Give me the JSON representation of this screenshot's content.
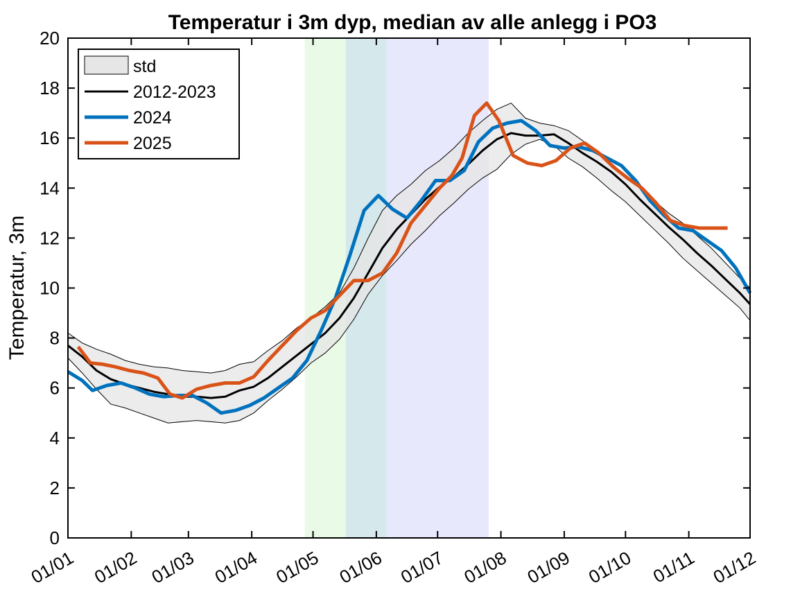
{
  "chart_data": {
    "type": "line",
    "title": "Temperatur i 3m dyp, median av alle anlegg i PO3",
    "xlabel": "",
    "ylabel": "Temperatur, 3m",
    "x_axis": {
      "unit": "day of year",
      "range": [
        1,
        335
      ],
      "tick_positions": [
        1,
        32,
        60,
        91,
        121,
        152,
        182,
        213,
        244,
        274,
        305,
        335
      ],
      "tick_labels": [
        "01/01",
        "01/02",
        "01/03",
        "01/04",
        "01/05",
        "01/06",
        "01/07",
        "01/08",
        "01/09",
        "01/10",
        "01/11",
        "01/12"
      ]
    },
    "y_axis": {
      "range": [
        0,
        20
      ],
      "ticks": [
        0,
        2,
        4,
        6,
        8,
        10,
        12,
        14,
        16,
        18,
        20
      ],
      "tick_labels": [
        "0",
        "2",
        "4",
        "6",
        "8",
        "10",
        "12",
        "14",
        "16",
        "18",
        "20"
      ]
    },
    "grid": false,
    "legend_position": "top-left",
    "shaded_periods": [
      {
        "start": 117,
        "end": 137,
        "color": "#e9fbe6"
      },
      {
        "start": 137,
        "end": 157,
        "color": "#d5e8ec"
      },
      {
        "start": 157,
        "end": 207,
        "color": "#e7e8fc"
      }
    ],
    "std_band": {
      "name": "std",
      "color": "#e6e6e6",
      "x": [
        1,
        8,
        15,
        22,
        29,
        36,
        43,
        50,
        57,
        64,
        71,
        78,
        85,
        92,
        99,
        106,
        113,
        120,
        127,
        134,
        141,
        148,
        155,
        162,
        169,
        176,
        183,
        190,
        197,
        204,
        211,
        218,
        225,
        232,
        239,
        246,
        253,
        260,
        267,
        274,
        281,
        288,
        295,
        302,
        309,
        316,
        323,
        330,
        335
      ],
      "upper": [
        8.2,
        7.8,
        7.55,
        7.35,
        7.1,
        6.95,
        6.85,
        6.8,
        6.7,
        6.65,
        6.6,
        6.7,
        6.95,
        7.05,
        7.5,
        7.9,
        8.4,
        8.8,
        9.25,
        9.8,
        10.8,
        12.0,
        13.1,
        13.7,
        14.15,
        14.7,
        15.1,
        15.6,
        16.2,
        16.7,
        17.15,
        17.4,
        16.8,
        16.6,
        16.5,
        16.3,
        15.9,
        15.4,
        15.0,
        14.5,
        14.0,
        13.5,
        13.0,
        12.6,
        12.1,
        11.6,
        11.0,
        10.4,
        10.0
      ],
      "lower": [
        7.2,
        6.6,
        5.95,
        5.35,
        5.2,
        5.0,
        4.8,
        4.6,
        4.65,
        4.7,
        4.65,
        4.6,
        4.7,
        5.0,
        5.5,
        5.95,
        6.45,
        7.0,
        7.4,
        7.95,
        8.75,
        9.75,
        10.5,
        11.1,
        11.75,
        12.3,
        12.9,
        13.4,
        13.95,
        14.4,
        14.75,
        15.35,
        15.75,
        15.95,
        15.7,
        15.2,
        14.85,
        14.4,
        13.9,
        13.45,
        12.9,
        12.35,
        11.8,
        11.2,
        10.7,
        10.2,
        9.7,
        9.2,
        8.7
      ]
    },
    "series": [
      {
        "name": "2012-2023",
        "color": "#000000",
        "width": 3,
        "x": [
          1,
          8,
          15,
          22,
          29,
          36,
          43,
          50,
          57,
          64,
          71,
          78,
          85,
          92,
          99,
          106,
          113,
          120,
          127,
          134,
          141,
          148,
          155,
          162,
          169,
          176,
          183,
          190,
          197,
          204,
          211,
          218,
          225,
          232,
          239,
          246,
          253,
          260,
          267,
          274,
          281,
          288,
          295,
          302,
          309,
          316,
          323,
          330,
          335
        ],
        "y": [
          7.7,
          7.25,
          6.7,
          6.35,
          6.15,
          6.0,
          5.85,
          5.75,
          5.65,
          5.65,
          5.6,
          5.65,
          5.9,
          6.05,
          6.4,
          6.85,
          7.3,
          7.75,
          8.2,
          8.8,
          9.6,
          10.6,
          11.6,
          12.35,
          12.95,
          13.55,
          14.05,
          14.45,
          14.95,
          15.5,
          15.95,
          16.2,
          16.1,
          16.1,
          16.15,
          15.8,
          15.4,
          15.05,
          14.65,
          14.15,
          13.55,
          13.0,
          12.45,
          11.95,
          11.4,
          10.9,
          10.35,
          9.8,
          9.35
        ]
      },
      {
        "name": "2024",
        "color": "#0072bd",
        "width": 5,
        "x": [
          1,
          8,
          13,
          20,
          27,
          34,
          41,
          48,
          55,
          62,
          69,
          76,
          83,
          90,
          97,
          104,
          111,
          118,
          125,
          132,
          139,
          146,
          153,
          160,
          167,
          174,
          181,
          188,
          195,
          202,
          209,
          216,
          223,
          230,
          237,
          244,
          251,
          258,
          265,
          272,
          279,
          286,
          293,
          300,
          307,
          314,
          321,
          328,
          335
        ],
        "y": [
          6.65,
          6.3,
          5.9,
          6.1,
          6.2,
          6.0,
          5.75,
          5.65,
          5.7,
          5.7,
          5.4,
          5.0,
          5.1,
          5.3,
          5.6,
          6.0,
          6.4,
          7.1,
          8.3,
          9.6,
          11.3,
          13.1,
          13.7,
          13.15,
          12.8,
          13.5,
          14.3,
          14.3,
          14.7,
          15.85,
          16.4,
          16.6,
          16.7,
          16.3,
          15.7,
          15.6,
          15.65,
          15.5,
          15.2,
          14.9,
          14.3,
          13.5,
          12.9,
          12.4,
          12.3,
          11.9,
          11.5,
          10.8,
          9.8
        ]
      },
      {
        "name": "2025",
        "color": "#d95319",
        "width": 5,
        "x": [
          6,
          12,
          18,
          24,
          31,
          38,
          45,
          51,
          57,
          64,
          71,
          78,
          85,
          92,
          99,
          106,
          113,
          120,
          127,
          134,
          141,
          148,
          155,
          162,
          169,
          176,
          183,
          189,
          194,
          200,
          206,
          212,
          219,
          226,
          233,
          240,
          247,
          254,
          261,
          268,
          275,
          282,
          289,
          296,
          303,
          310,
          317,
          324
        ],
        "y": [
          7.65,
          7.0,
          6.95,
          6.85,
          6.7,
          6.6,
          6.4,
          5.75,
          5.6,
          5.95,
          6.1,
          6.2,
          6.2,
          6.45,
          7.1,
          7.7,
          8.3,
          8.8,
          9.1,
          9.7,
          10.3,
          10.3,
          10.6,
          11.4,
          12.6,
          13.3,
          14.0,
          14.5,
          15.2,
          16.9,
          17.4,
          16.7,
          15.3,
          15.0,
          14.9,
          15.1,
          15.6,
          15.8,
          15.4,
          14.85,
          14.4,
          14.0,
          13.4,
          12.7,
          12.5,
          12.4,
          12.4,
          12.4
        ]
      }
    ]
  }
}
